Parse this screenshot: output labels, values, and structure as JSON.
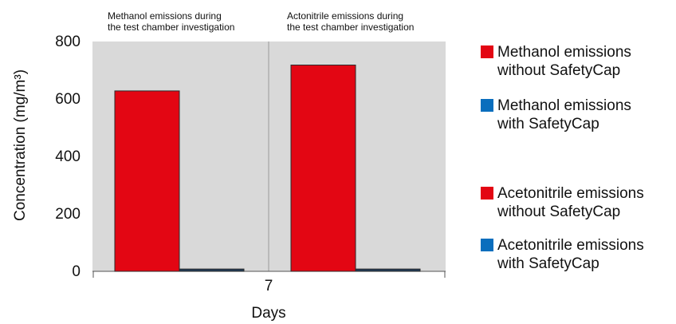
{
  "chart_data": {
    "type": "bar",
    "categories": [
      "7"
    ],
    "xlabel": "Days",
    "ylabel": "Concentration (mg/m³)",
    "ylim": [
      0,
      800
    ],
    "yticks": [
      0,
      200,
      400,
      600,
      800
    ],
    "grid": false,
    "legend_position": "right",
    "panels": [
      {
        "title": "Methanol emissions during\nthe test chamber investigation",
        "series": [
          {
            "name": "Methanol emissions\nwithout SafetyCap",
            "values": [
              628
            ],
            "color": "#e30613"
          },
          {
            "name": "Methanol emissions\nwith SafetyCap",
            "values": [
              8
            ],
            "color": "#0a6ebd"
          }
        ]
      },
      {
        "title": "Actonitrile emissions during\nthe test chamber investigation",
        "series": [
          {
            "name": "Acetonitrile emissions\nwithout SafetyCap",
            "values": [
              718
            ],
            "color": "#e30613"
          },
          {
            "name": "Acetonitrile emissions\nwith SafetyCap",
            "values": [
              8
            ],
            "color": "#0a6ebd"
          }
        ]
      }
    ],
    "colors": {
      "plot_background": "#d9d9d9",
      "bar_stroke": "#2b2b2b",
      "with_cap_bar": "#1f3b57"
    }
  }
}
